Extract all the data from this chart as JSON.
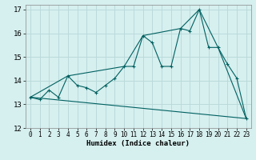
{
  "xlabel": "Humidex (Indice chaleur)",
  "xlim": [
    -0.5,
    23.5
  ],
  "ylim": [
    12,
    17.2
  ],
  "yticks": [
    12,
    13,
    14,
    15,
    16,
    17
  ],
  "xticks": [
    0,
    1,
    2,
    3,
    4,
    5,
    6,
    7,
    8,
    9,
    10,
    11,
    12,
    13,
    14,
    15,
    16,
    17,
    18,
    19,
    20,
    21,
    22,
    23
  ],
  "bg_color": "#d6efef",
  "grid_color": "#b8d8d8",
  "line_color": "#006060",
  "series_markers": {
    "x": [
      0,
      1,
      2,
      3,
      4,
      5,
      6,
      7,
      8,
      9,
      10,
      11,
      12,
      13,
      14,
      15,
      16,
      17,
      18,
      19,
      20,
      21,
      22,
      23
    ],
    "y": [
      13.3,
      13.2,
      13.6,
      13.3,
      14.2,
      13.8,
      13.7,
      13.5,
      13.8,
      14.1,
      14.6,
      14.6,
      15.9,
      15.6,
      14.6,
      14.6,
      16.2,
      16.1,
      17.0,
      15.4,
      15.4,
      14.7,
      14.1,
      12.4
    ]
  },
  "series_upper": {
    "x": [
      0,
      4,
      10,
      12,
      16,
      18,
      20,
      23
    ],
    "y": [
      13.3,
      14.2,
      14.6,
      15.9,
      16.2,
      17.0,
      15.4,
      12.4
    ]
  },
  "series_lower": {
    "x": [
      0,
      23
    ],
    "y": [
      13.3,
      12.4
    ]
  }
}
